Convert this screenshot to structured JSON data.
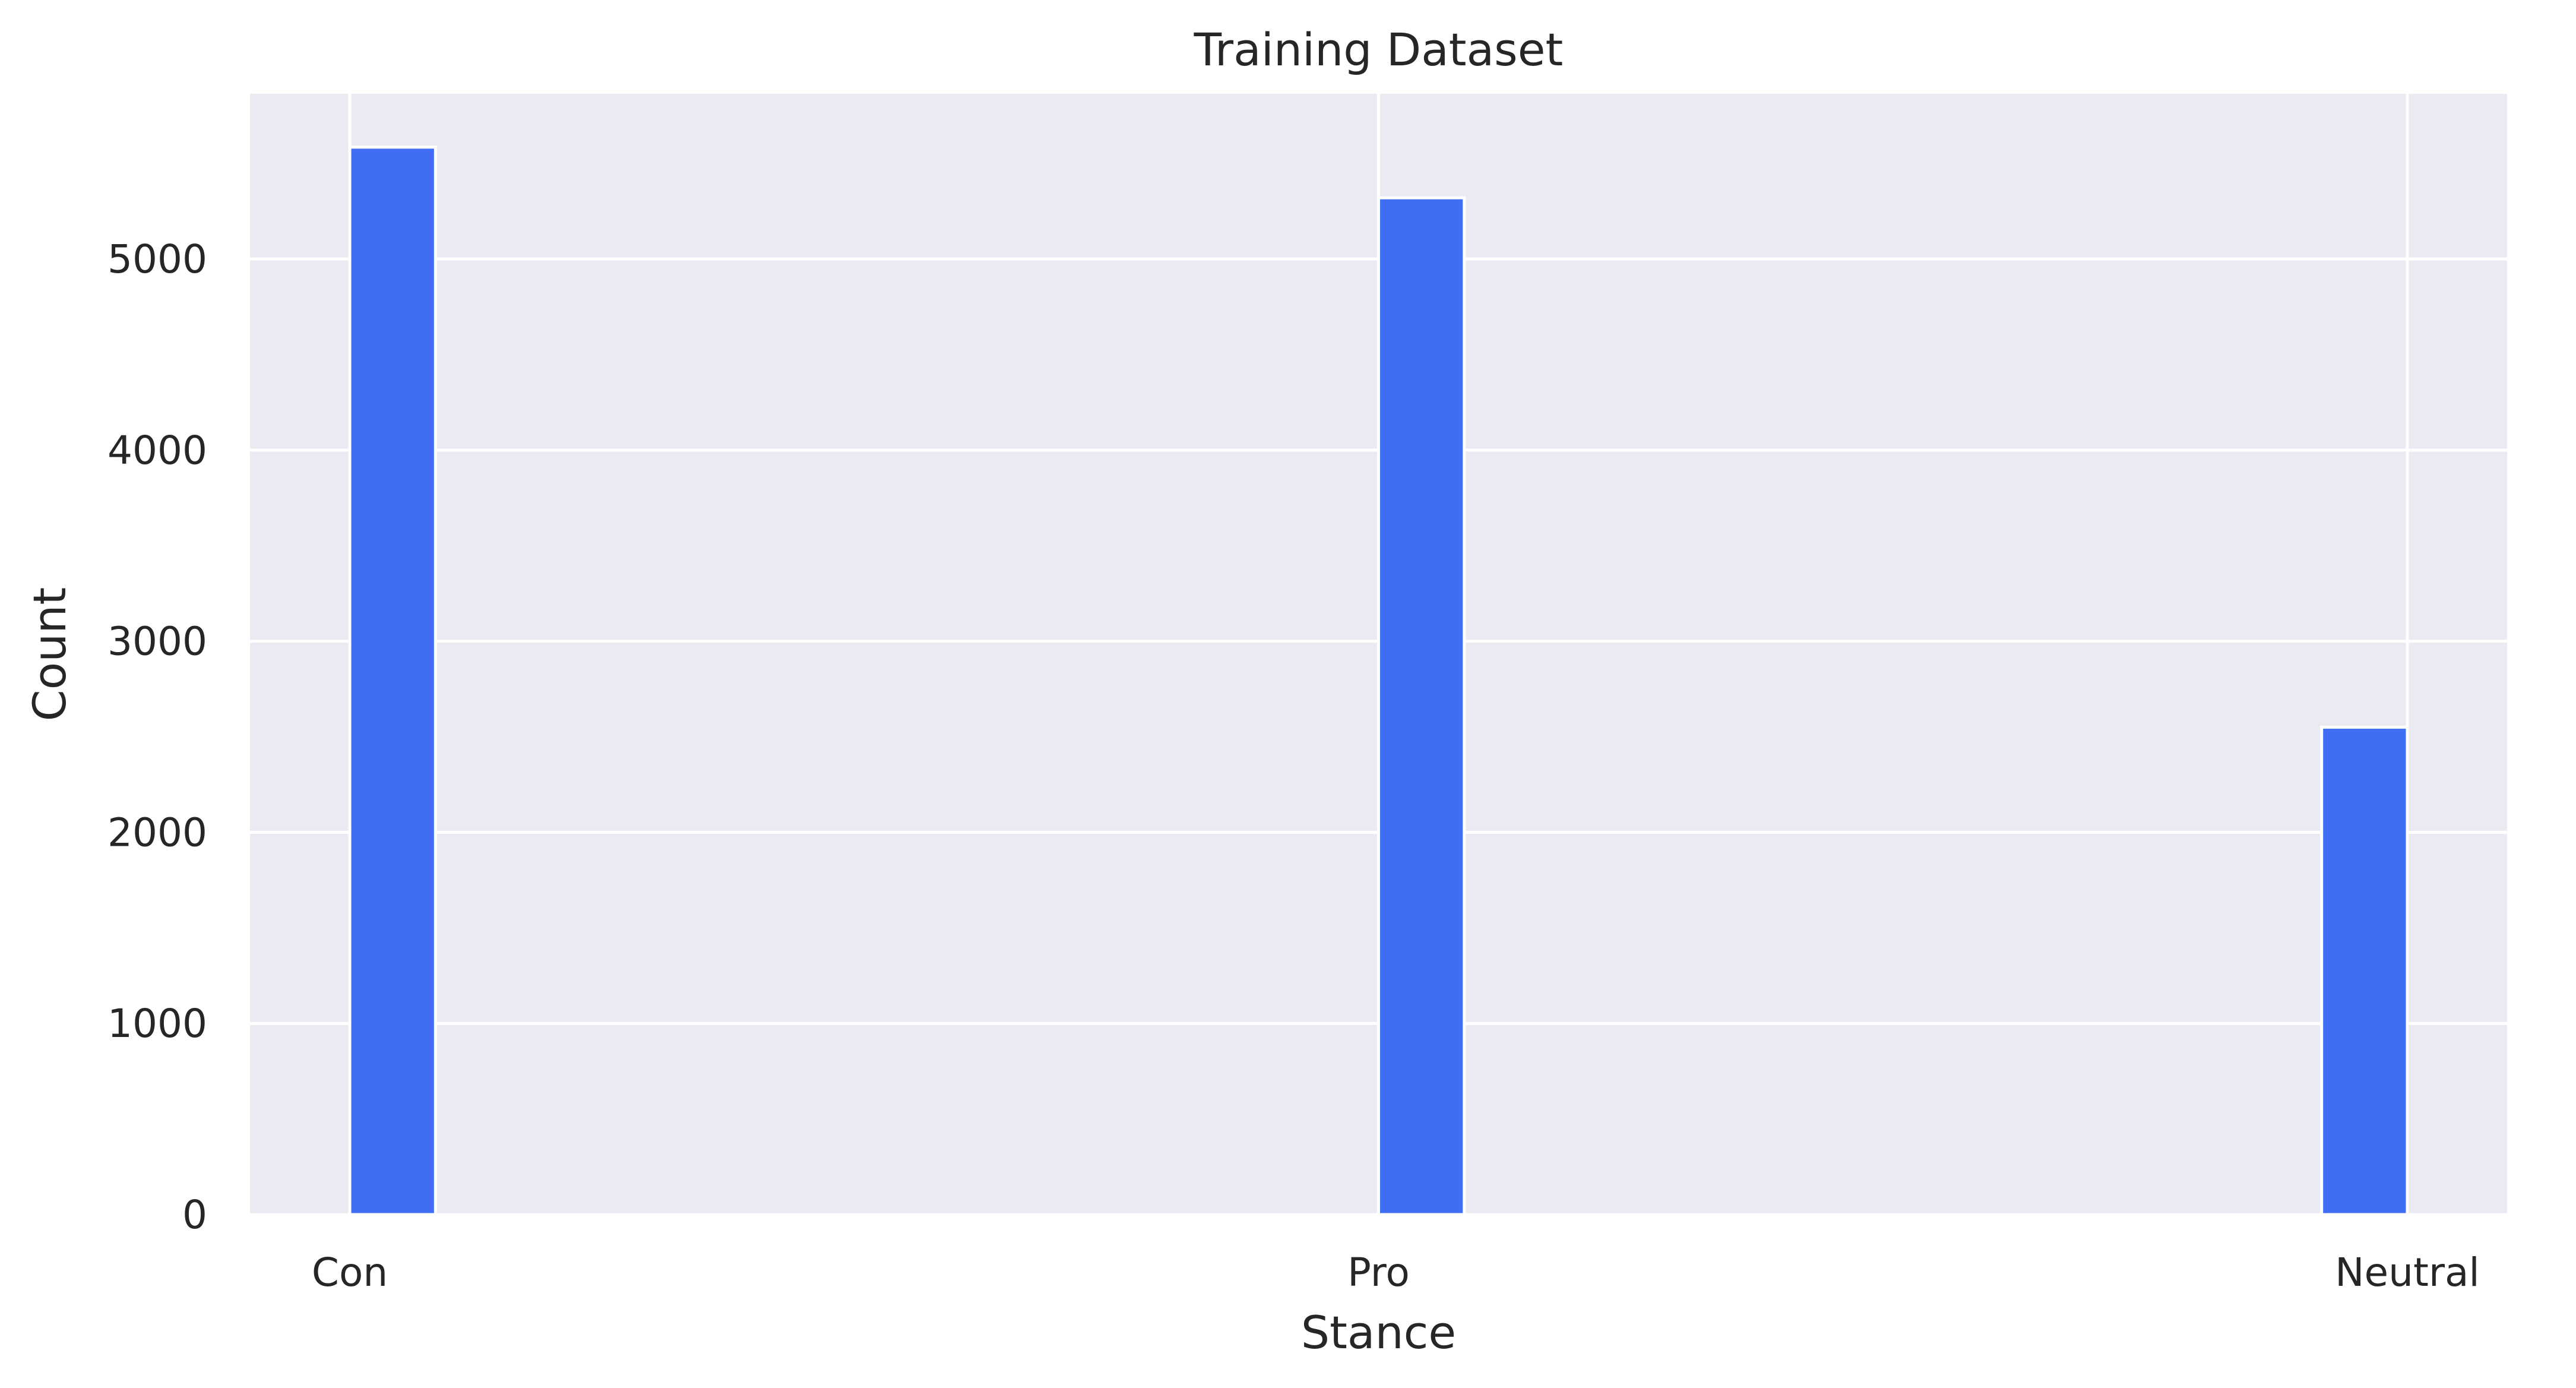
{
  "chart_data": {
    "type": "bar",
    "title": "Training Dataset",
    "xlabel": "Stance",
    "ylabel": "Count",
    "categories": [
      "Con",
      "Pro",
      "Neutral"
    ],
    "values": [
      5585,
      5320,
      2550
    ],
    "x_positions": [
      0,
      1,
      2
    ],
    "xlim": [
      -0.097,
      2.097
    ],
    "ylim": [
      0,
      5864
    ],
    "yticks": [
      0,
      1000,
      2000,
      3000,
      4000,
      5000
    ],
    "xticks": [
      0,
      1,
      2
    ],
    "grid": true,
    "legend": "none"
  },
  "colors": {
    "bar": "#3d6af5",
    "bar_edge": "#ffffff",
    "plot_background": "#eaeaf2",
    "grid": "#ffffff",
    "text": "#262626"
  }
}
